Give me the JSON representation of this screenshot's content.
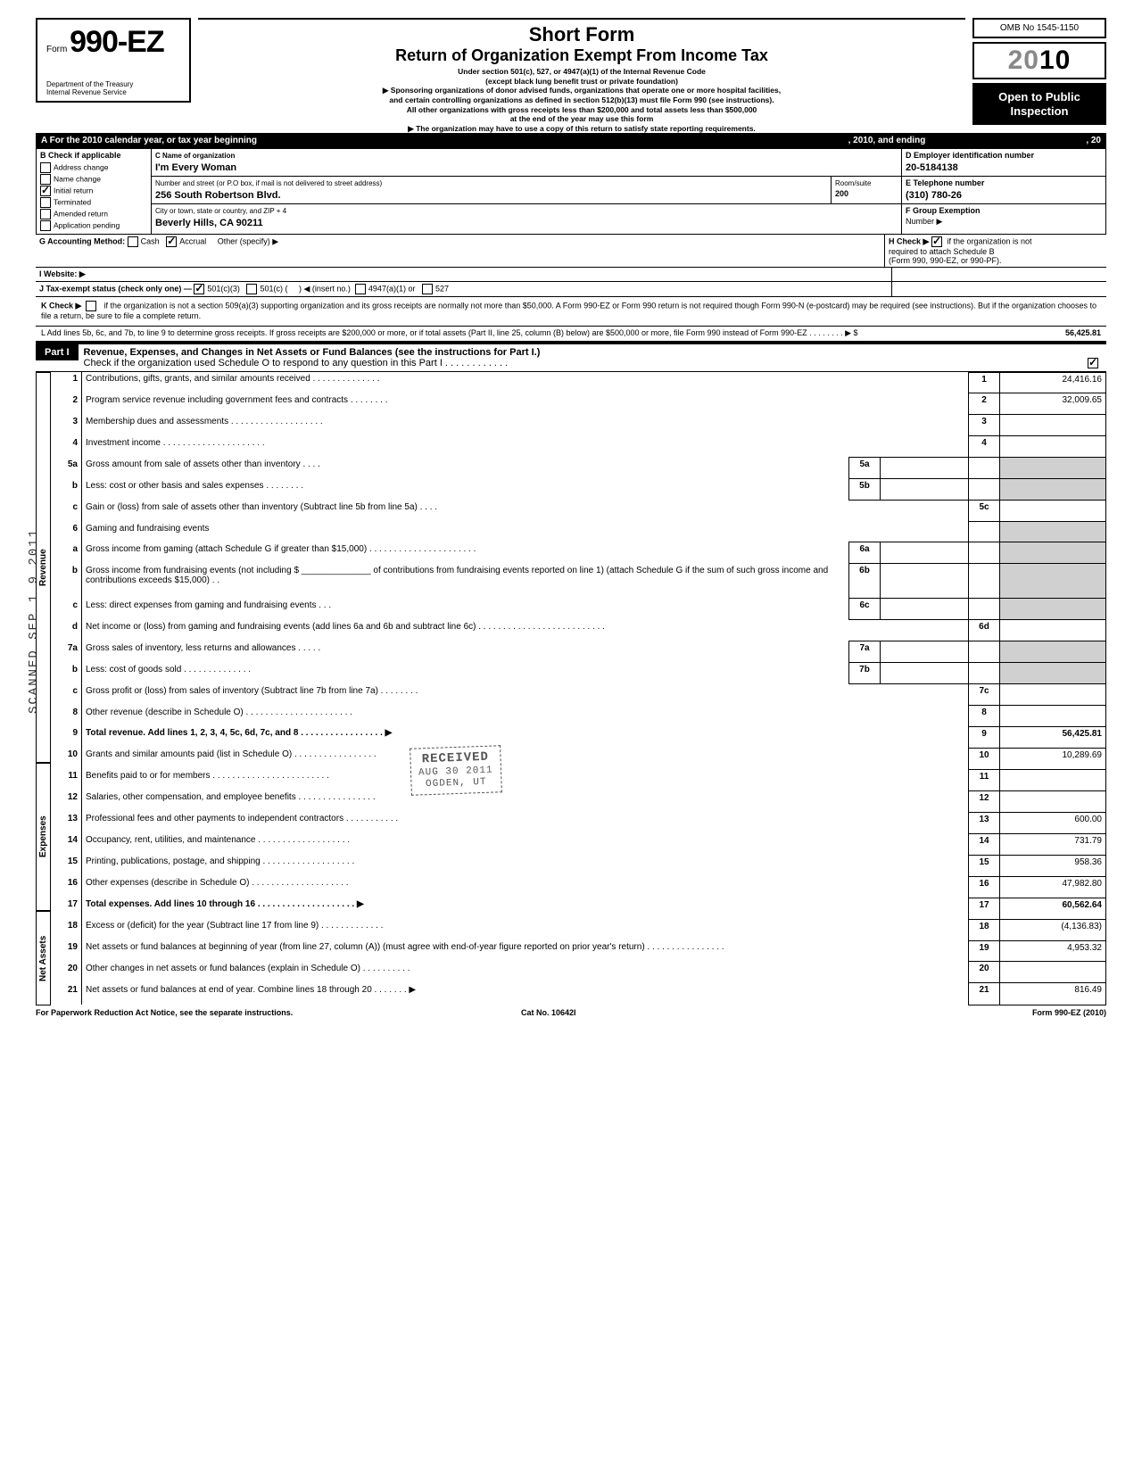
{
  "meta": {
    "omb": "OMB No 1545-1150",
    "year_grey": "20",
    "year_bold": "10",
    "open1": "Open to Public",
    "open2": "Inspection",
    "form_prefix": "Form",
    "form_num": "990-EZ",
    "dept1": "Department of the Treasury",
    "dept2": "Internal Revenue Service",
    "title1": "Short Form",
    "title2": "Return of Organization Exempt From Income Tax",
    "sub1": "Under section 501(c), 527, or 4947(a)(1) of the Internal Revenue Code",
    "sub2": "(except black lung benefit trust or private foundation)",
    "sub3": "▶ Sponsoring organizations of donor advised funds, organizations that operate one or more hospital facilities,",
    "sub4": "and certain controlling organizations as defined in section 512(b)(13) must file Form 990 (see instructions).",
    "sub5": "All other organizations with gross receipts less than $200,000 and total assets less than $500,000",
    "sub6": "at the end of the year may use this form",
    "sub7": "▶ The organization may have to use a copy of this return to satisfy state reporting requirements."
  },
  "secA": {
    "text_left": "A  For the 2010 calendar year, or tax year beginning",
    "text_mid": ", 2010, and ending",
    "text_right": ", 20"
  },
  "boxB": {
    "header": "B  Check if applicable",
    "items": [
      "Address change",
      "Name change",
      "Initial return",
      "Terminated",
      "Amended return",
      "Application pending"
    ],
    "checked_idx": 2
  },
  "boxC": {
    "label": "C  Name of organization",
    "name": "I'm Every Woman",
    "addr_label": "Number and street (or P.O  box, if mail is not delivered to street address)",
    "addr": "256 South Robertson Blvd.",
    "room_label": "Room/suite",
    "room": "200",
    "city_label": "City or town, state or country, and ZIP + 4",
    "city": "Beverly Hills, CA  90211"
  },
  "boxD": {
    "label": "D Employer identification number",
    "val": "20-5184138"
  },
  "boxE": {
    "label": "E  Telephone number",
    "val": "(310) 780-26"
  },
  "boxF": {
    "label": "F  Group Exemption",
    "label2": "Number ▶"
  },
  "rowG": {
    "g": "G  Accounting Method:",
    "cash": "Cash",
    "accrual": "Accrual",
    "other": "Other (specify) ▶",
    "h": "H  Check ▶",
    "h2": "if the organization is not",
    "h3": "required to attach Schedule B",
    "h4": "(Form 990, 990-EZ, or 990-PF)."
  },
  "rowI": {
    "i": "I   Website: ▶"
  },
  "rowJ": {
    "j": "J  Tax-exempt status (check only one) —",
    "o1": "501(c)(3)",
    "o2": "501(c) (",
    "o2b": ")  ◀ (insert no.)",
    "o3": "4947(a)(1) or",
    "o4": "527"
  },
  "rowK": {
    "k": "K  Check ▶",
    "text": "if the organization is not a section 509(a)(3) supporting organization and its gross receipts are normally not more than $50,000.  A Form 990-EZ or Form 990 return is not required though Form 990-N (e-postcard) may be required (see instructions). But if the organization chooses to file a return, be sure to file a complete return."
  },
  "rowL": {
    "text": "L  Add lines 5b, 6c, and 7b, to line 9 to determine gross receipts. If gross receipts are $200,000 or more, or if total assets (Part II, line  25, column (B) below) are $500,000 or more, file Form 990 instead of Form 990-EZ   .      .      .             .     .     .     .     .    ▶  $",
    "amt": "56,425.81"
  },
  "part1": {
    "tab": "Part I",
    "title": "Revenue, Expenses, and Changes in Net Assets or Fund Balances (see the instructions for Part I.)",
    "check_line": "Check if the organization used Schedule O to respond to any question in this Part I  .   .   .   .   .   .   .   .   .   .   .   ."
  },
  "sideLabels": {
    "rev": "Revenue",
    "exp": "Expenses",
    "na": "Net Assets"
  },
  "lines": [
    {
      "n": "1",
      "d": "Contributions, gifts, grants, and similar amounts received .   .   .   .   .   .   .   .   .   .   .   .   .   .",
      "b": "1",
      "v": "24,416.16"
    },
    {
      "n": "2",
      "d": "Program service revenue including government fees and contracts     .    .    .    .    .    .    .    .",
      "b": "2",
      "v": "32,009.65"
    },
    {
      "n": "3",
      "d": "Membership dues and assessments .    .    .    .    .    .    .    .    .    .    .    .    .    .    .    .    .    .    .",
      "b": "3",
      "v": ""
    },
    {
      "n": "4",
      "d": "Investment income       .     .     .     .     .     .     .     .     .     .     .     .     .     .     .     .     .     .     .     .     .",
      "b": "4",
      "v": ""
    },
    {
      "n": "5a",
      "d": "Gross amount from sale of assets other than inventory    .    .    .    .",
      "in": "5a",
      "iv": "",
      "grey": true
    },
    {
      "n": "b",
      "d": "Less: cost or other basis and sales expenses .    .    .    .    .    .    .    .",
      "in": "5b",
      "iv": "",
      "grey": true
    },
    {
      "n": "c",
      "d": "Gain or (loss) from sale of assets other than inventory (Subtract line 5b from line 5a)   .    .    .    .",
      "b": "5c",
      "v": ""
    },
    {
      "n": "6",
      "d": "Gaming and fundraising events",
      "grey": true,
      "noval": true
    },
    {
      "n": "a",
      "d": "Gross income from gaming (attach Schedule G if greater than $15,000) .   .   .   .   .   .   .   .   .   .   .   .   .   .   .   .   .   .   .   .   .   .",
      "in": "6a",
      "iv": "",
      "grey": true
    },
    {
      "n": "b",
      "d": "Gross income from fundraising events (not including $ ______________ of contributions from fundraising events reported on line 1) (attach Schedule G if the sum of such gross income and contributions exceeds $15,000) .   .",
      "in": "6b",
      "iv": "",
      "grey": true
    },
    {
      "n": "c",
      "d": "Less: direct expenses from gaming and fundraising events    .    .    .",
      "in": "6c",
      "iv": "",
      "grey": true
    },
    {
      "n": "d",
      "d": "Net income or (loss) from gaming and fundraising events (add lines 6a and 6b and subtract line 6c)      .     .     .     .     .     .     .     .     .     .     .     .     .     .     .     .     .     .     .     .     .     .     .     .     .     .",
      "b": "6d",
      "v": ""
    },
    {
      "n": "7a",
      "d": "Gross sales of inventory, less returns and allowances   .    .    .    .    .",
      "in": "7a",
      "iv": "",
      "grey": true
    },
    {
      "n": "b",
      "d": "Less: cost of goods sold       .    .    .    .    .    .    .    .    .    .    .    .    .    .",
      "in": "7b",
      "iv": "",
      "grey": true
    },
    {
      "n": "c",
      "d": "Gross profit or (loss) from sales of inventory (Subtract line 7b from line 7a)   .   .   .   .   .   .   .   .",
      "b": "7c",
      "v": ""
    },
    {
      "n": "8",
      "d": "Other revenue (describe in Schedule O) .   .   .   .   .   .   .   .   .   .   .   .   .   .   .   .   .   .   .   .   .   .",
      "b": "8",
      "v": ""
    },
    {
      "n": "9",
      "d": "Total revenue. Add lines 1, 2, 3, 4, 5c, 6d, 7c, and 8    .   .   .   .   .   .   .   .   .   .   .   .   .   .   .   .   . ▶",
      "b": "9",
      "v": "56,425.81",
      "bold": true
    },
    {
      "n": "10",
      "d": "Grants and similar amounts paid (list in Schedule O)   .   .   .   .   .   .   .   .   .   .   .   .   .   .   .   .   .",
      "b": "10",
      "v": "10,289.69"
    },
    {
      "n": "11",
      "d": "Benefits paid to or for members   .   .   .   .   .   .   .   .   .   .   .   .   .   .   .   .   .   .   .   .   .   .   .   .",
      "b": "11",
      "v": ""
    },
    {
      "n": "12",
      "d": "Salaries, other compensation, and employee benefits   .   .   .   .   .   .   .   .   .   .   .   .   .   .   .   .",
      "b": "12",
      "v": ""
    },
    {
      "n": "13",
      "d": "Professional fees and other payments to independent contractors  .   .   .   .   .   .   .   .   .   .   .",
      "b": "13",
      "v": "600.00"
    },
    {
      "n": "14",
      "d": "Occupancy, rent, utilities, and maintenance    .   .   .   .   .   .   .   .   .   .   .   .   .   .   .   .   .   .   .",
      "b": "14",
      "v": "731.79"
    },
    {
      "n": "15",
      "d": "Printing, publications, postage, and shipping .   .   .   .   .   .   .   .   .   .   .   .   .   .   .   .   .   .   .",
      "b": "15",
      "v": "958.36"
    },
    {
      "n": "16",
      "d": "Other expenses (describe in Schedule O)   .   .   .   .   .   .   .   .   .   .   .   .   .   .   .   .   .   .   .   .",
      "b": "16",
      "v": "47,982.80"
    },
    {
      "n": "17",
      "d": "Total expenses. Add lines 10 through 16  .   .   .   .   .   .   .   .   .   .   .   .   .   .   .   .   .   .   .   . ▶",
      "b": "17",
      "v": "60,562.64",
      "bold": true
    },
    {
      "n": "18",
      "d": "Excess or (deficit) for the year (Subtract line 17 from line 9)    .   .   .   .   .   .   .   .   .   .   .   .   .",
      "b": "18",
      "v": "(4,136.83)"
    },
    {
      "n": "19",
      "d": "Net assets or fund balances at beginning of year (from line 27, column (A)) (must agree with end-of-year figure reported on prior year's return)     .   .   .   .   .   .   .   .   .   .   .   .   .   .   .   .",
      "b": "19",
      "v": "4,953.32"
    },
    {
      "n": "20",
      "d": "Other changes in net assets or fund balances (explain in Schedule O) .   .   .   .   .   .   .   .   .   .",
      "b": "20",
      "v": ""
    },
    {
      "n": "21",
      "d": "Net assets or fund balances at end of year. Combine lines 18 through 20    .   .   .   .   .   .   . ▶",
      "b": "21",
      "v": "816.49"
    }
  ],
  "stamp": {
    "l1": "RECEIVED",
    "l2": "AUG 30 2011",
    "l3": "OGDEN, UT"
  },
  "scanned": "SCANNED  SEP 1 9 2011",
  "footer": {
    "left": "For Paperwork Reduction Act Notice, see the separate instructions.",
    "mid": "Cat  No. 10642I",
    "right": "Form 990-EZ  (2010)"
  }
}
